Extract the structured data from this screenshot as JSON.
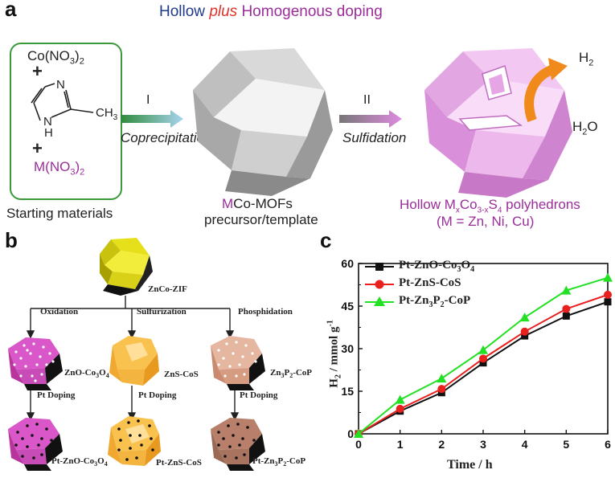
{
  "panel_a": {
    "letter": "a",
    "title_part1": "Hollow ",
    "title_part2": "plus",
    "title_part3": " Homogenous doping",
    "reactant1": "Co(NO",
    "reactant1_sub": "3",
    "reactant1_end": ")",
    "reactant1_sub2": "2",
    "plus1": "+",
    "plus2": "+",
    "imidazole_n": "N",
    "imidazole_nh": "N",
    "imidazole_h": "H",
    "methyl": "CH",
    "methyl_sub": "3",
    "reactant3": "M(NO",
    "reactant3_sub": "3",
    "reactant3_end": ")",
    "reactant3_sub2": "2",
    "starting_label": "Starting materials",
    "step1_num": "I",
    "step1_label": "Coprecipitation",
    "step2_num": "II",
    "step2_label": "Sulfidation",
    "mof_label_m": "M",
    "mof_label_rest": "Co-MOFs",
    "mof_label_line2": "precursor/template",
    "product_line1_a": "Hollow M",
    "product_line1_sub1": "x",
    "product_line1_b": "Co",
    "product_line1_sub2": "3-x",
    "product_line1_c": "S",
    "product_line1_sub3": "4",
    "product_line1_d": " polyhedrons",
    "product_line2": "(M = Zn, Ni, Cu)",
    "h2": "H",
    "h2_sub": "2",
    "h2o": "H",
    "h2o_sub": "2",
    "h2o_end": "O",
    "colors": {
      "title_blue": "#1f3a8a",
      "title_red": "#e0322a",
      "title_purple": "#9b2d9b",
      "green_box": "#3a9a3a"
    }
  },
  "panel_b": {
    "letter": "b",
    "zif_label": "ZnCo-ZIF",
    "branch1": "Oxidation",
    "branch2": "Sulfurization",
    "branch3": "Phosphidation",
    "mid1": "ZnO-Co",
    "mid1_sub1": "3",
    "mid1_b": "O",
    "mid1_sub2": "4",
    "mid2": "ZnS-CoS",
    "mid3": "Zn",
    "mid3_sub1": "3",
    "mid3_b": "P",
    "mid3_sub2": "2",
    "mid3_c": "-CoP",
    "doping": "Pt Doping",
    "final1": "Pt-ZnO-Co",
    "final1_sub1": "3",
    "final1_b": "O",
    "final1_sub2": "4",
    "final2": "Pt-ZnS-CoS",
    "final3": "Pt-Zn",
    "final3_sub1": "3",
    "final3_b": "P",
    "final3_sub2": "2",
    "final3_c": "-CoP"
  },
  "panel_c": {
    "letter": "c",
    "chart_data": {
      "type": "line",
      "title": "",
      "xlabel": "Time / h",
      "ylabel": "H2 / mmol g-1",
      "x": [
        0,
        1,
        2,
        3,
        4,
        5,
        6
      ],
      "xlim": [
        0,
        6
      ],
      "ylim": [
        0,
        60
      ],
      "xticks": [
        "0",
        "1",
        "2",
        "3",
        "4",
        "5",
        "6"
      ],
      "yticks": [
        "0",
        "15",
        "30",
        "45",
        "60"
      ],
      "grid": false,
      "legend_position": "top-left",
      "series": [
        {
          "name": "Pt-ZnO-Co3O4",
          "label_a": "Pt-ZnO-Co",
          "label_sub1": "3",
          "label_b": "O",
          "label_sub2": "4",
          "color": "#111111",
          "marker": "square",
          "values": [
            0,
            8,
            14.5,
            25,
            34.5,
            41.5,
            46.5
          ]
        },
        {
          "name": "Pt-ZnS-CoS",
          "label_a": "Pt-ZnS-CoS",
          "color": "#e8201e",
          "marker": "circle",
          "values": [
            0,
            8.8,
            15.8,
            26.5,
            36,
            44,
            49
          ]
        },
        {
          "name": "Pt-Zn3P2-CoP",
          "label_a": "Pt-Zn",
          "label_sub1": "3",
          "label_b": "P",
          "label_sub2": "2",
          "label_c": "-CoP",
          "color": "#22e022",
          "marker": "triangle",
          "values": [
            0,
            12,
            19.5,
            29.5,
            41,
            50.5,
            55
          ]
        }
      ],
      "ylabel_main": "H",
      "ylabel_sub": "2",
      "ylabel_rest": " / mmol g",
      "ylabel_sup": "-1"
    }
  }
}
